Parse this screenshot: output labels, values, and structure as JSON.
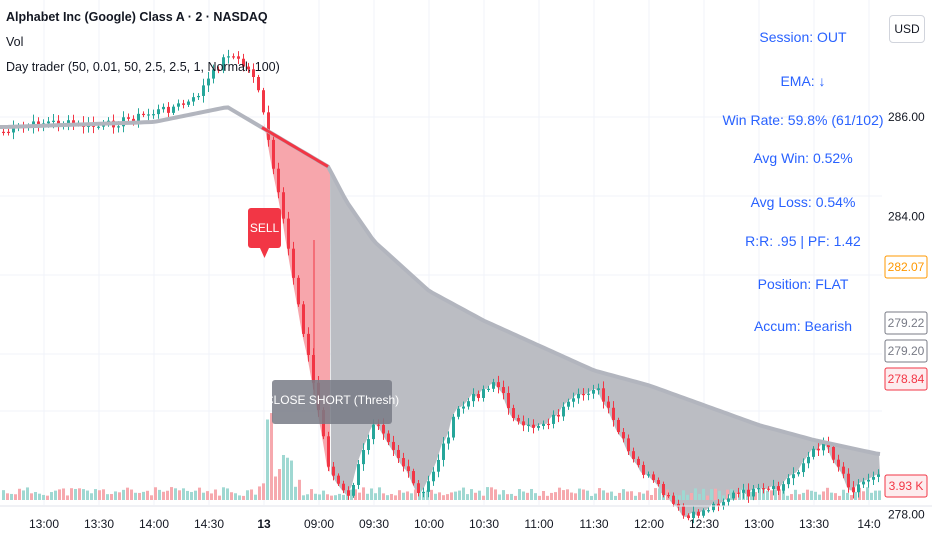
{
  "header": {
    "title": "Alphabet Inc (Google) Class A · 2 · NASDAQ",
    "vol_label": "Vol",
    "indicator": "Day trader (50, 0.01, 50, 2.5, 2.5, 1, Normal, 100)"
  },
  "currency_button": "USD",
  "stats_panel": {
    "session": "Session: OUT",
    "ema": "EMA: ↓",
    "win_rate": "Win Rate: 59.8%  (61/102)",
    "avg_win": "Avg Win: 0.52%",
    "avg_loss": "Avg Loss: 0.54%",
    "rr_pf": "R:R: .95   |   PF: 1.42",
    "position": "Position: FLAT",
    "accum": "Accum: Bearish"
  },
  "signals": {
    "sell_label": "SELL",
    "close_label": "CLOSE SHORT (Thresh)"
  },
  "y_axis": {
    "ticks": [
      "286.00",
      "284.00",
      "278.00"
    ],
    "tick_values": [
      286,
      284,
      278
    ],
    "badges": [
      {
        "label": "282.07",
        "value": 282.07,
        "color": "#ff9800"
      },
      {
        "label": "279.22",
        "value": 279.22,
        "color": "#787b86"
      },
      {
        "label": "279.20",
        "value": 279.2,
        "color": "#787b86"
      },
      {
        "label": "278.84",
        "value": 278.84,
        "color": "#f23645"
      }
    ],
    "volume_badge": {
      "label": "3.93 K",
      "color": "#f23645"
    }
  },
  "x_axis": {
    "ticks": [
      "13:00",
      "13:30",
      "14:00",
      "14:30",
      "13",
      "09:00",
      "09:30",
      "10:00",
      "10:30",
      "11:00",
      "11:30",
      "12:00",
      "12:30",
      "13:00",
      "13:30",
      "14:0"
    ]
  },
  "colors": {
    "up": "#26a69a",
    "down": "#f23645",
    "ema_line": "#b2b5be",
    "fill_red": "#f7a1a8",
    "fill_grey": "#b7b9c0",
    "panel_text": "#2962ff"
  },
  "chart_data": {
    "type": "candlestick",
    "symbol": "Alphabet Inc (Google) Class A",
    "interval": "2",
    "exchange": "NASDAQ",
    "ylim": [
      277.2,
      289.6
    ],
    "close_path": [
      {
        "x": "12:40",
        "y": 285.7
      },
      {
        "x": "13:00",
        "y": 285.9
      },
      {
        "x": "13:30",
        "y": 285.8
      },
      {
        "x": "14:00",
        "y": 286.1
      },
      {
        "x": "14:20",
        "y": 286.3
      },
      {
        "x": "14:40",
        "y": 287.3
      },
      {
        "x": "14:55",
        "y": 286.8
      },
      {
        "x": "09:05",
        "y": 278.9
      },
      {
        "x": "09:15",
        "y": 278.3
      },
      {
        "x": "09:30",
        "y": 280.0
      },
      {
        "x": "09:45",
        "y": 279.0
      },
      {
        "x": "09:55",
        "y": 278.3
      },
      {
        "x": "10:15",
        "y": 280.1
      },
      {
        "x": "10:35",
        "y": 280.7
      },
      {
        "x": "10:50",
        "y": 279.7
      },
      {
        "x": "11:05",
        "y": 279.9
      },
      {
        "x": "11:30",
        "y": 280.6
      },
      {
        "x": "11:50",
        "y": 279.1
      },
      {
        "x": "12:20",
        "y": 277.9
      },
      {
        "x": "12:45",
        "y": 278.4
      },
      {
        "x": "13:10",
        "y": 278.5
      },
      {
        "x": "13:35",
        "y": 279.5
      },
      {
        "x": "13:50",
        "y": 278.5
      },
      {
        "x": "14:05",
        "y": 278.9
      }
    ],
    "ema_path": [
      {
        "x": "12:40",
        "y": 285.8
      },
      {
        "x": "14:00",
        "y": 285.9
      },
      {
        "x": "14:40",
        "y": 286.2
      },
      {
        "x": "09:05",
        "y": 285.0
      },
      {
        "x": "09:15",
        "y": 284.3
      },
      {
        "x": "09:30",
        "y": 283.5
      },
      {
        "x": "10:00",
        "y": 282.5
      },
      {
        "x": "10:30",
        "y": 281.9
      },
      {
        "x": "11:00",
        "y": 281.4
      },
      {
        "x": "11:30",
        "y": 280.9
      },
      {
        "x": "12:00",
        "y": 280.6
      },
      {
        "x": "12:30",
        "y": 280.2
      },
      {
        "x": "13:00",
        "y": 279.8
      },
      {
        "x": "13:30",
        "y": 279.5
      },
      {
        "x": "14:05",
        "y": 279.22
      }
    ],
    "last_price": 278.84,
    "volume_last": "3.93 K"
  }
}
